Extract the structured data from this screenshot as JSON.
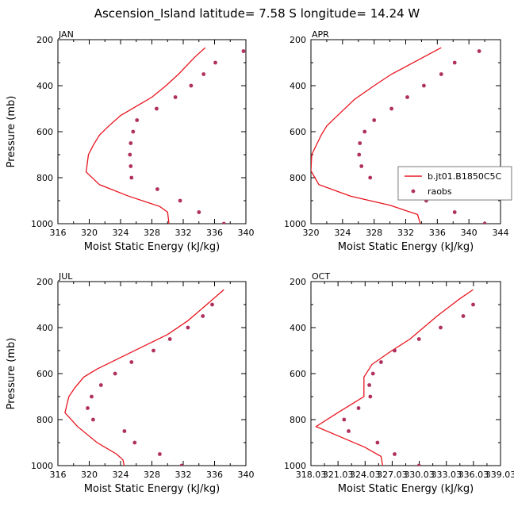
{
  "figure": {
    "title": "Ascension_Island  latitude= 7.58 S longitude= 14.24 W",
    "xlabel": "Moist Static Energy (kJ/kg)",
    "ylabel": "Pressure (mb)",
    "model_color": "#e8141e",
    "obs_color": "#b03060"
  },
  "chart_data": [
    {
      "type": "line",
      "panel_label": "JAN",
      "xlabel": "Moist Static Energy (kJ/kg)",
      "ylabel": "Pressure (mb)",
      "xlim": [
        316,
        340
      ],
      "ylim": [
        1000,
        200
      ],
      "x_ticks": [
        "316",
        "320",
        "324",
        "328",
        "332",
        "336",
        "340"
      ],
      "y_ticks": [
        "200",
        "400",
        "600",
        "800",
        "1000"
      ],
      "series": [
        {
          "name": "b.jt01.B1850C5C",
          "style": "line",
          "values": [
            [
              334.8,
              235
            ],
            [
              333.5,
              275
            ],
            [
              331.4,
              350
            ],
            [
              329.8,
              400
            ],
            [
              328.0,
              450
            ],
            [
              324.0,
              530
            ],
            [
              322.5,
              575
            ],
            [
              321.3,
              615
            ],
            [
              320.5,
              660
            ],
            [
              319.9,
              700
            ],
            [
              319.6,
              775
            ],
            [
              321.3,
              830
            ],
            [
              325.0,
              880
            ],
            [
              329.0,
              925
            ],
            [
              330.0,
              950
            ],
            [
              330.2,
              1005
            ]
          ]
        },
        {
          "name": "raobs",
          "style": "markers",
          "values": [
            [
              339.7,
              250
            ],
            [
              336.1,
              300
            ],
            [
              334.6,
              350
            ],
            [
              333.0,
              400
            ],
            [
              331.0,
              450
            ],
            [
              328.6,
              500
            ],
            [
              326.1,
              550
            ],
            [
              325.6,
              600
            ],
            [
              325.3,
              650
            ],
            [
              325.2,
              700
            ],
            [
              325.3,
              750
            ],
            [
              325.4,
              800
            ],
            [
              328.7,
              850
            ],
            [
              331.6,
              900
            ],
            [
              334.0,
              950
            ],
            [
              337.2,
              1000
            ]
          ]
        }
      ]
    },
    {
      "type": "line",
      "panel_label": "APR",
      "xlabel": "Moist Static Energy (kJ/kg)",
      "ylabel": "",
      "xlim": [
        320,
        344
      ],
      "ylim": [
        1000,
        200
      ],
      "x_ticks": [
        "320",
        "324",
        "328",
        "332",
        "336",
        "340",
        "344"
      ],
      "y_ticks": [
        "200",
        "400",
        "600",
        "800",
        "1000"
      ],
      "legend": {
        "position": "right",
        "entries": [
          "b.jt01.B1850C5C",
          "raobs"
        ]
      },
      "series": [
        {
          "name": "b.jt01.B1850C5C",
          "style": "line",
          "values": [
            [
              336.5,
              235
            ],
            [
              333.5,
              290
            ],
            [
              330.2,
              350
            ],
            [
              328.0,
              400
            ],
            [
              325.5,
              460
            ],
            [
              323.2,
              535
            ],
            [
              322.0,
              575
            ],
            [
              321.3,
              615
            ],
            [
              320.1,
              700
            ],
            [
              320.0,
              770
            ],
            [
              321.0,
              830
            ],
            [
              325.0,
              880
            ],
            [
              330.0,
              920
            ],
            [
              333.5,
              960
            ],
            [
              333.9,
              1005
            ]
          ]
        },
        {
          "name": "raobs",
          "style": "markers",
          "values": [
            [
              341.3,
              250
            ],
            [
              338.2,
              300
            ],
            [
              336.5,
              350
            ],
            [
              334.3,
              400
            ],
            [
              332.2,
              450
            ],
            [
              330.2,
              500
            ],
            [
              328.0,
              550
            ],
            [
              326.8,
              600
            ],
            [
              326.2,
              650
            ],
            [
              326.1,
              700
            ],
            [
              326.4,
              750
            ],
            [
              327.5,
              800
            ],
            [
              331.6,
              850
            ],
            [
              334.6,
              900
            ],
            [
              338.2,
              950
            ],
            [
              342.0,
              1000
            ]
          ]
        }
      ]
    },
    {
      "type": "line",
      "panel_label": "JUL",
      "xlabel": "Moist Static Energy (kJ/kg)",
      "ylabel": "Pressure (mb)",
      "xlim": [
        316,
        340
      ],
      "ylim": [
        1000,
        200
      ],
      "x_ticks": [
        "316",
        "320",
        "324",
        "328",
        "332",
        "336",
        "340"
      ],
      "y_ticks": [
        "200",
        "400",
        "600",
        "800",
        "1000"
      ],
      "series": [
        {
          "name": "b.jt01.B1850C5C",
          "style": "line",
          "values": [
            [
              337.2,
              235
            ],
            [
              335.0,
              300
            ],
            [
              332.6,
              370
            ],
            [
              330.0,
              430
            ],
            [
              327.0,
              480
            ],
            [
              324.0,
              530
            ],
            [
              321.0,
              580
            ],
            [
              319.3,
              615
            ],
            [
              318.2,
              660
            ],
            [
              317.4,
              700
            ],
            [
              316.9,
              770
            ],
            [
              318.5,
              830
            ],
            [
              321.0,
              900
            ],
            [
              323.5,
              950
            ],
            [
              324.3,
              975
            ],
            [
              324.5,
              1005
            ]
          ]
        },
        {
          "name": "raobs",
          "style": "markers",
          "values": [
            [
              335.7,
              300
            ],
            [
              334.5,
              350
            ],
            [
              332.6,
              400
            ],
            [
              330.3,
              450
            ],
            [
              328.2,
              500
            ],
            [
              325.4,
              550
            ],
            [
              323.3,
              600
            ],
            [
              321.5,
              650
            ],
            [
              320.3,
              700
            ],
            [
              319.8,
              750
            ],
            [
              320.5,
              800
            ],
            [
              324.5,
              850
            ],
            [
              325.8,
              900
            ],
            [
              329.0,
              950
            ],
            [
              331.8,
              1000
            ]
          ]
        }
      ]
    },
    {
      "type": "line",
      "panel_label": "OCT",
      "xlabel": "Moist Static Energy (kJ/kg)",
      "ylabel": "",
      "xlim": [
        318.03,
        339.03
      ],
      "ylim": [
        1000,
        200
      ],
      "x_ticks": [
        "318.03",
        "321.03",
        "324.03",
        "327.03",
        "330.03",
        "333.03",
        "336.03",
        "339.03"
      ],
      "y_ticks": [
        "200",
        "400",
        "600",
        "800",
        "1000"
      ],
      "series": [
        {
          "name": "b.jt01.B1850C5C",
          "style": "line",
          "values": [
            [
              336.0,
              235
            ],
            [
              334.5,
              275
            ],
            [
              332.0,
              350
            ],
            [
              330.5,
              400
            ],
            [
              329.0,
              450
            ],
            [
              327.0,
              500
            ],
            [
              324.8,
              560
            ],
            [
              323.9,
              615
            ],
            [
              323.9,
              700
            ],
            [
              321.0,
              770
            ],
            [
              318.6,
              830
            ],
            [
              321.0,
              870
            ],
            [
              324.0,
              920
            ],
            [
              325.8,
              960
            ],
            [
              326.0,
              1005
            ]
          ]
        },
        {
          "name": "raobs",
          "style": "markers",
          "values": [
            [
              336.0,
              300
            ],
            [
              334.9,
              350
            ],
            [
              332.4,
              400
            ],
            [
              330.0,
              450
            ],
            [
              327.3,
              500
            ],
            [
              325.8,
              550
            ],
            [
              324.9,
              600
            ],
            [
              324.5,
              650
            ],
            [
              324.6,
              700
            ],
            [
              323.3,
              750
            ],
            [
              321.7,
              800
            ],
            [
              322.2,
              850
            ],
            [
              325.4,
              900
            ],
            [
              327.3,
              950
            ],
            [
              330.0,
              1000
            ]
          ]
        }
      ]
    }
  ]
}
